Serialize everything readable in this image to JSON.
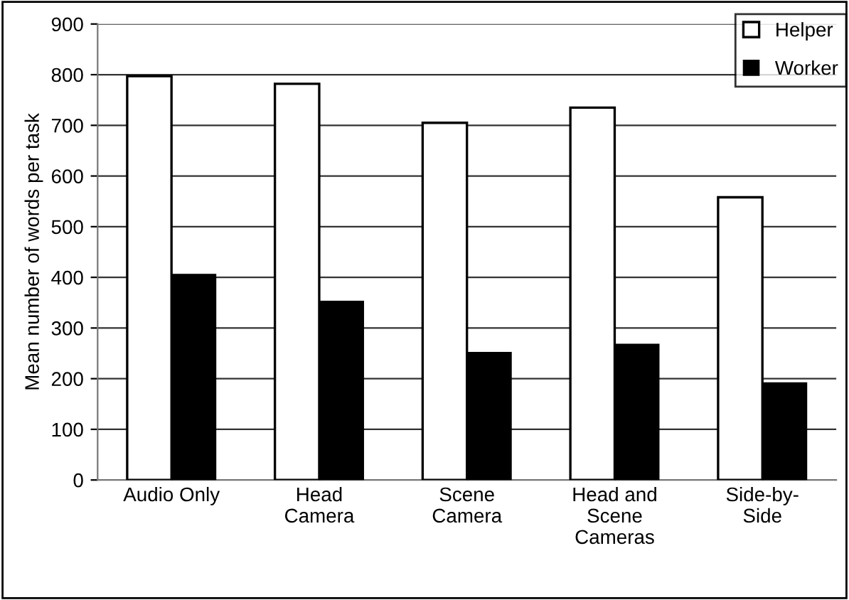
{
  "chart_data": {
    "type": "bar",
    "ylabel": "Mean number of words per task",
    "categories": [
      "Audio Only",
      "Head\nCamera",
      "Scene\nCamera",
      "Head and\nScene\nCameras",
      "Side-by-\nSide"
    ],
    "series": [
      {
        "name": "Helper",
        "color": "#ffffff",
        "values": [
          797,
          782,
          705,
          735,
          558
        ]
      },
      {
        "name": "Worker",
        "color": "#000000",
        "values": [
          406,
          353,
          252,
          268,
          192
        ]
      }
    ],
    "ylim": [
      0,
      900
    ],
    "yticks": [
      0,
      100,
      200,
      300,
      400,
      500,
      600,
      700,
      800,
      900
    ],
    "grid": "y",
    "legend": "top right"
  }
}
